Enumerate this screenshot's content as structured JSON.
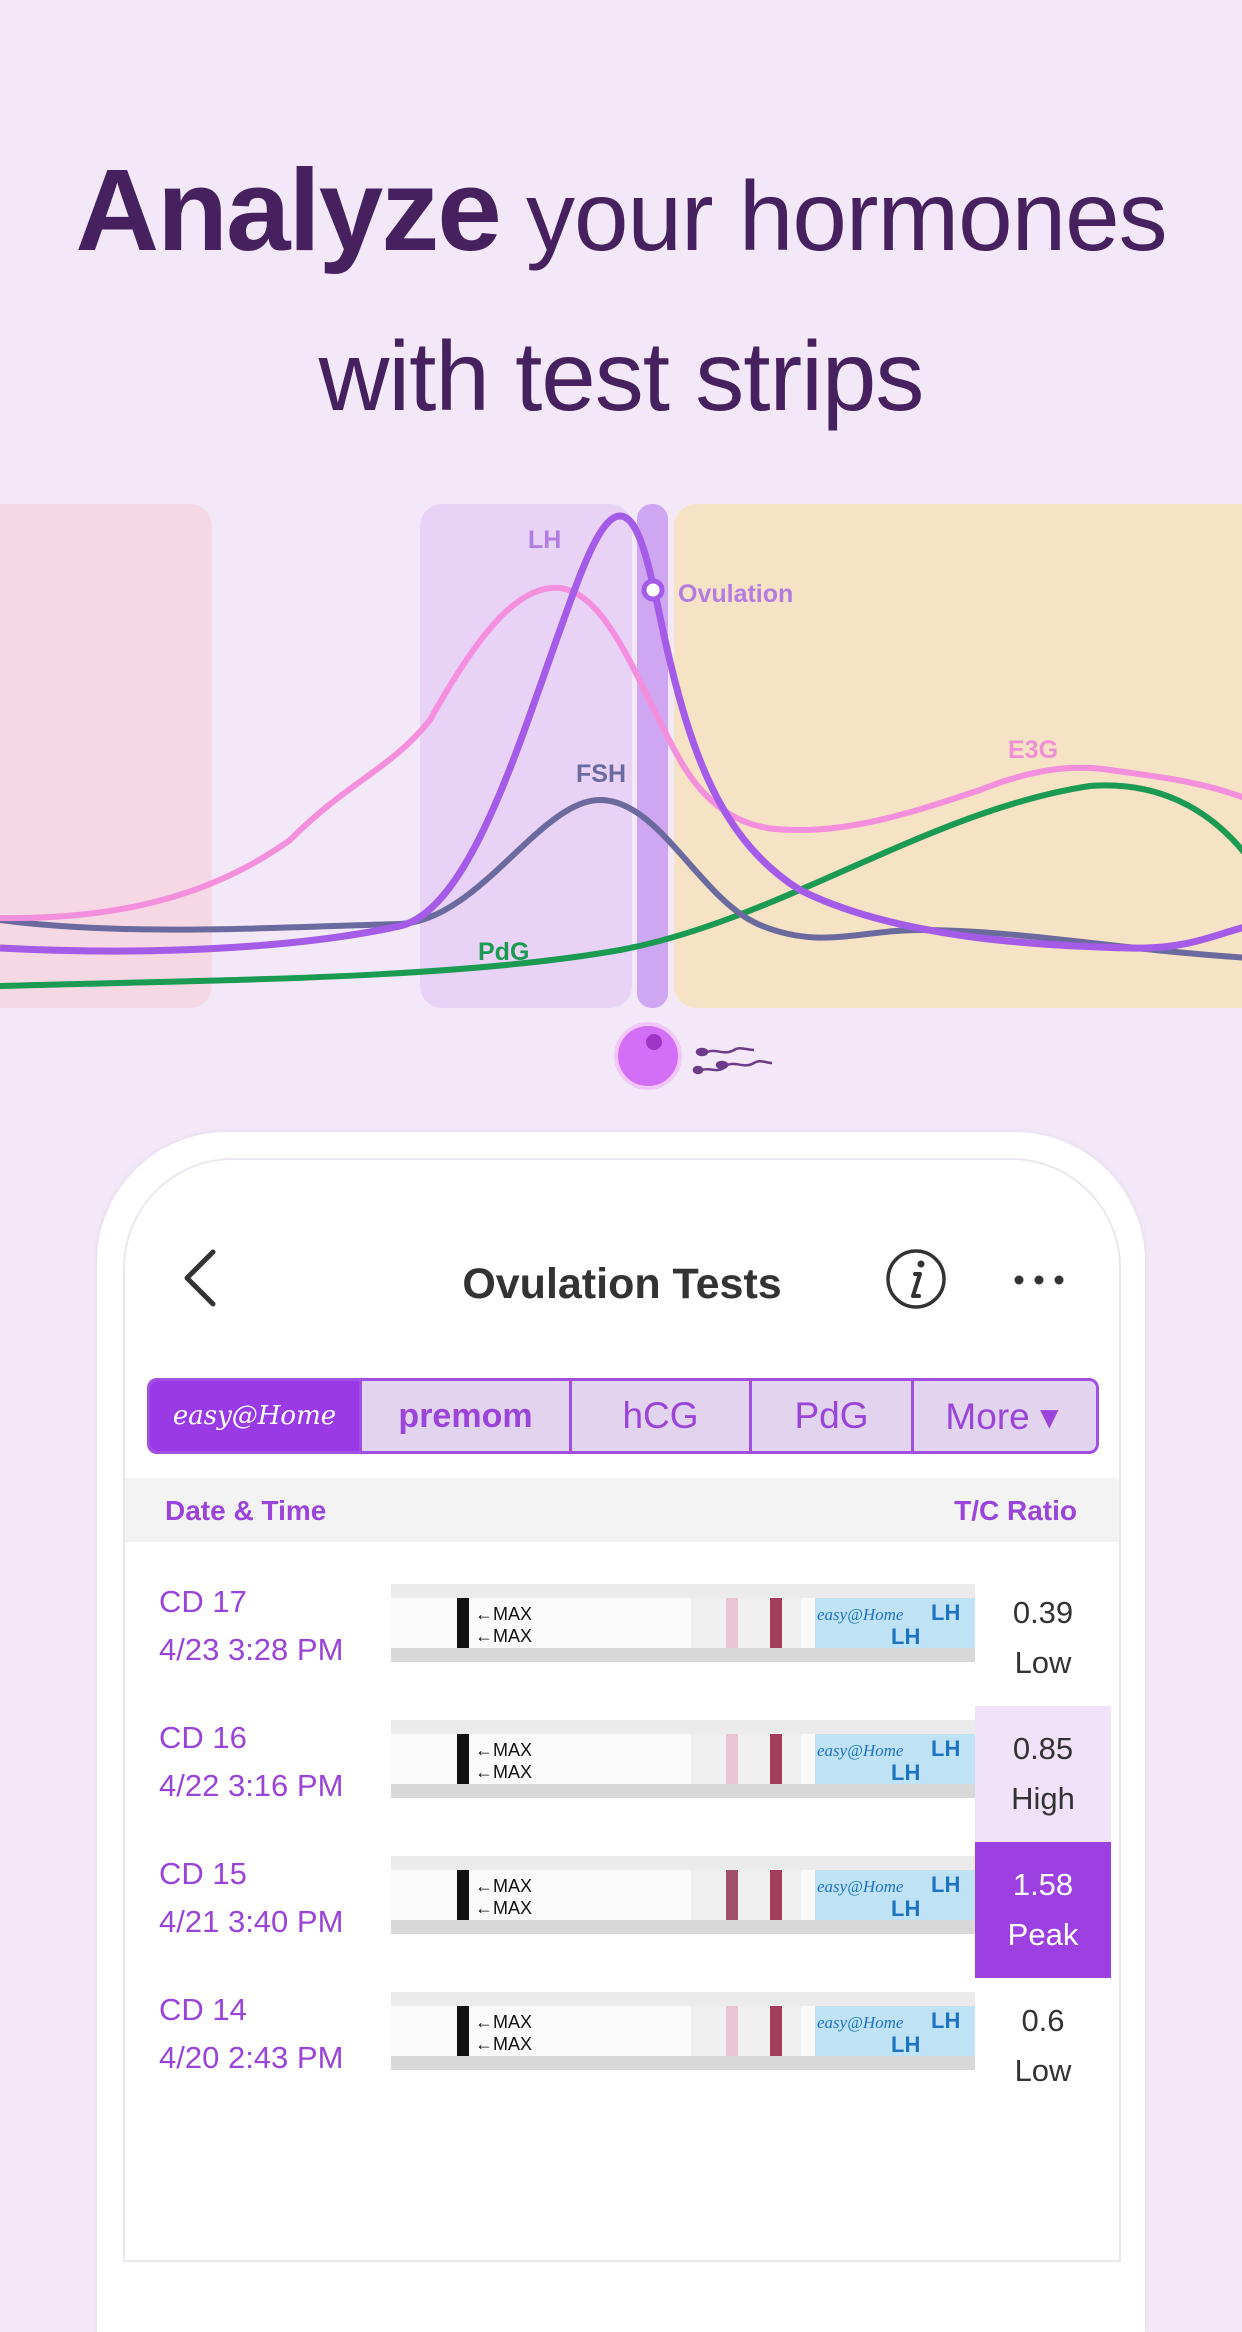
{
  "headline": {
    "strong": "Analyze",
    "rest_line1": " your hormones",
    "line2": "with test strips"
  },
  "illustration": {
    "label_lh": "LH",
    "label_fsh": "FSH",
    "label_pdg": "PdG",
    "label_e3g": "E3G",
    "label_ovulation": "Ovulation",
    "colors": {
      "lh": "#a45be8",
      "e3g": "#f38fdc",
      "fsh": "#6b6a9e",
      "pdg": "#1b9a52",
      "period_band": "#f6d8e4",
      "fertile_band": "#e8d3f7",
      "luteal_band": "#f6e2c4"
    }
  },
  "nav": {
    "title": "Ovulation Tests",
    "back_icon": "chevron-left-icon",
    "info_icon": "info-icon",
    "more_icon": "more-horizontal-icon"
  },
  "tabs": [
    {
      "label": "easy@Home",
      "active": true
    },
    {
      "label": "premom",
      "active": false
    },
    {
      "label": "hCG",
      "active": false
    },
    {
      "label": "PdG",
      "active": false
    },
    {
      "label": "More ▾",
      "active": false
    }
  ],
  "list_header": {
    "left": "Date & Time",
    "right": "T/C Ratio"
  },
  "strip_text": {
    "max": "←MAX",
    "brand": "easy@Home",
    "lh": "LH"
  },
  "rows": [
    {
      "cd": "CD 17",
      "datetime": "4/23 3:28 PM",
      "ratio": "0.39",
      "level": "Low",
      "state": "low"
    },
    {
      "cd": "CD 16",
      "datetime": "4/22 3:16 PM",
      "ratio": "0.85",
      "level": "High",
      "state": "high"
    },
    {
      "cd": "CD 15",
      "datetime": "4/21 3:40 PM",
      "ratio": "1.58",
      "level": "Peak",
      "state": "peak"
    },
    {
      "cd": "CD 14",
      "datetime": "4/20 2:43 PM",
      "ratio": "0.6",
      "level": "Low",
      "state": "low"
    }
  ]
}
